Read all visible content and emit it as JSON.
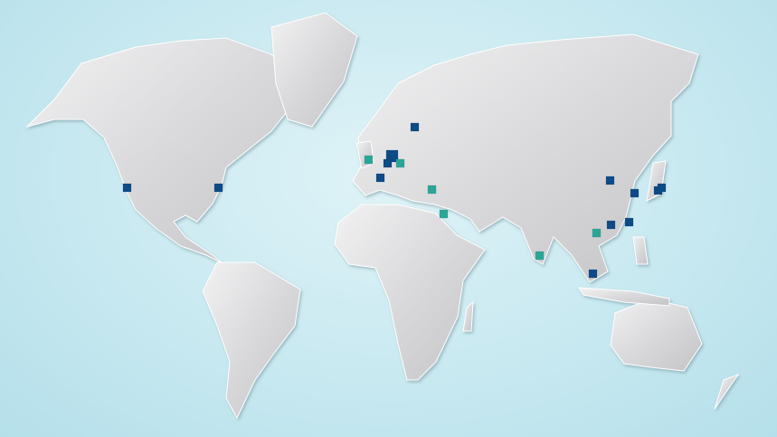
{
  "map": {
    "ocean_color": "#c6e8f0",
    "land_color": "#d6d6d8",
    "border_color": "#ffffff",
    "marker_colors": {
      "primary": "#0d4a86",
      "secondary": "#2aa596"
    }
  }
}
